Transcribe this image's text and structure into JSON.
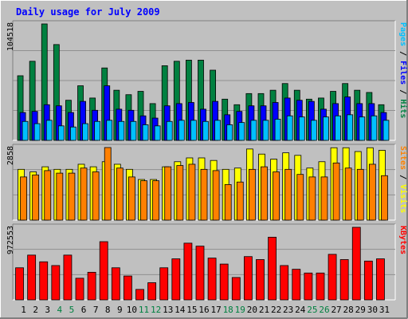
{
  "title": "Daily usage for July 2009",
  "colors": {
    "background": "#c0c0c0",
    "title": "#0000ff",
    "hits": "#008040",
    "files": "#0000ff",
    "pages": "#00c0ff",
    "visits": "#ffff00",
    "sites": "#ff8000",
    "kbytes": "#ff0000",
    "weekend_day": "#008040",
    "weekday": "#000000"
  },
  "chart_data": [
    {
      "type": "bar",
      "panel": "hits-files-pages",
      "max_label": "104518",
      "ylim": [
        0,
        104518
      ],
      "legend": [
        "Pages",
        "Files",
        "Hits"
      ],
      "legend_separator": " / ",
      "categories": [
        "1",
        "2",
        "3",
        "4",
        "5",
        "6",
        "7",
        "8",
        "9",
        "10",
        "11",
        "12",
        "13",
        "14",
        "15",
        "16",
        "17",
        "18",
        "19",
        "20",
        "21",
        "22",
        "23",
        "24",
        "25",
        "26",
        "27",
        "28",
        "29",
        "30",
        "31"
      ],
      "series": [
        {
          "name": "Hits",
          "values": [
            58000,
            71000,
            104518,
            86000,
            36000,
            49000,
            38000,
            65000,
            45000,
            41000,
            44000,
            33000,
            67000,
            71000,
            72000,
            72000,
            63000,
            37000,
            32000,
            42000,
            42000,
            45000,
            51000,
            45000,
            37000,
            38000,
            44000,
            51000,
            45000,
            43000,
            32000
          ]
        },
        {
          "name": "Files",
          "values": [
            25000,
            26000,
            32000,
            31000,
            25000,
            35000,
            27000,
            49000,
            28000,
            27000,
            22000,
            20000,
            31000,
            33000,
            34000,
            28000,
            35000,
            23000,
            26000,
            31000,
            31000,
            34000,
            38000,
            36000,
            35000,
            28000,
            33000,
            39000,
            33000,
            33000,
            25000
          ]
        },
        {
          "name": "Pages",
          "values": [
            17000,
            15000,
            18000,
            13000,
            12000,
            15000,
            17000,
            18000,
            17000,
            17000,
            14000,
            13000,
            17000,
            18000,
            18000,
            17000,
            18000,
            14000,
            16000,
            18000,
            18000,
            19000,
            22000,
            21000,
            18000,
            21000,
            22000,
            23000,
            21000,
            22000,
            18000
          ]
        }
      ]
    },
    {
      "type": "bar",
      "panel": "visits-sites",
      "max_label": "2858",
      "ylim": [
        0,
        2858
      ],
      "legend": [
        "Sites",
        "Visits"
      ],
      "legend_separator": " / ",
      "categories": [
        "1",
        "2",
        "3",
        "4",
        "5",
        "6",
        "7",
        "8",
        "9",
        "10",
        "11",
        "12",
        "13",
        "14",
        "15",
        "16",
        "17",
        "18",
        "19",
        "20",
        "21",
        "22",
        "23",
        "24",
        "25",
        "26",
        "27",
        "28",
        "29",
        "30",
        "31"
      ],
      "series": [
        {
          "name": "Visits",
          "values": [
            2000,
            1900,
            2100,
            2000,
            2000,
            2200,
            2100,
            2300,
            2200,
            2000,
            1600,
            1600,
            2100,
            2300,
            2450,
            2450,
            2350,
            2000,
            2050,
            2800,
            2600,
            2400,
            2650,
            2550,
            2050,
            2300,
            2850,
            2850,
            2700,
            2850,
            2750
          ]
        },
        {
          "name": "Sites",
          "values": [
            1700,
            1780,
            1950,
            1850,
            1850,
            2050,
            1900,
            2858,
            2050,
            1700,
            1550,
            1550,
            2100,
            2150,
            2200,
            2000,
            1950,
            1400,
            1500,
            2000,
            2100,
            1900,
            2000,
            1800,
            1700,
            1700,
            2250,
            2050,
            2000,
            2200,
            1750
          ]
        }
      ]
    },
    {
      "type": "bar",
      "panel": "kbytes",
      "max_label": "972553",
      "ylim": [
        0,
        972553
      ],
      "legend": [
        "KBytes"
      ],
      "legend_separator": " / ",
      "categories": [
        "1",
        "2",
        "3",
        "4",
        "5",
        "6",
        "7",
        "8",
        "9",
        "10",
        "11",
        "12",
        "13",
        "14",
        "15",
        "16",
        "17",
        "18",
        "19",
        "20",
        "21",
        "22",
        "23",
        "24",
        "25",
        "26",
        "27",
        "28",
        "29",
        "30",
        "31"
      ],
      "series": [
        {
          "name": "KBytes",
          "values": [
            430000,
            600000,
            510000,
            460000,
            600000,
            290000,
            370000,
            780000,
            430000,
            320000,
            140000,
            230000,
            430000,
            550000,
            760000,
            720000,
            560000,
            480000,
            300000,
            580000,
            540000,
            840000,
            460000,
            410000,
            360000,
            360000,
            610000,
            540000,
            972553,
            520000,
            550000
          ]
        }
      ]
    }
  ],
  "weekend_days": [
    "4",
    "5",
    "11",
    "12",
    "18",
    "19",
    "25",
    "26"
  ]
}
